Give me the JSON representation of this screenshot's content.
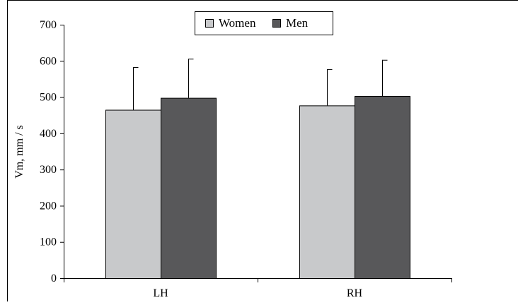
{
  "chart_data": {
    "type": "bar",
    "categories": [
      "LH",
      "RH"
    ],
    "series": [
      {
        "name": "Women",
        "values": [
          465,
          477
        ],
        "error": [
          118,
          100
        ],
        "color": "#c8c9cb"
      },
      {
        "name": "Men",
        "values": [
          498,
          503
        ],
        "error": [
          108,
          100
        ],
        "color": "#58585a"
      }
    ],
    "ylabel": "Vm, mm / s",
    "xlabel": "",
    "ylim": [
      0,
      700
    ],
    "yticks": [
      0,
      100,
      200,
      300,
      400,
      500,
      600,
      700
    ],
    "legend_position": "top-center",
    "grid": false
  }
}
